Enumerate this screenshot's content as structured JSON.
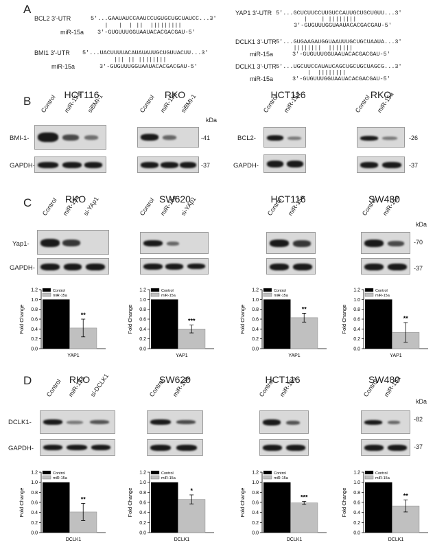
{
  "panel_A": {
    "letter": "A",
    "alignments": [
      {
        "utr_label": "BCL2 3'-UTR",
        "utr_seq": "5'...GAAUAUCCAAUCCUGUGCUGCUAUCC...3'",
        "pair_marks": "    |   |  | ||  |||||||||",
        "mir_label": "miR-15a",
        "mir_seq": "3'-GUGUUUGGUAAUACACGACGAU-5'"
      },
      {
        "utr_label": "BMI1 3'-UTR",
        "utr_seq": "5'...UACUUUUACAUAUAUUGCUGUUACUU...3'",
        "pair_marks": "         ||| || ||||||||",
        "mir_label": "miR-15a",
        "mir_seq": "3'-GUGUUUGGUAAUACACGACGAU-5'"
      },
      {
        "utr_label": "YAP1 3'-UTR",
        "utr_seq": "5'...GCUCUUCCUUGUCCAUUGCUGCUGUU...3'",
        "pair_marks": "        |    | ||||||||",
        "mir_label": "miR-15a",
        "mir_seq": "3'-GUGUUUGGUAAUACACGACGAU-5'"
      },
      {
        "utr_label": "DCLK1 3'-UTR",
        "utr_seq": "5'...GUGAAGAUGGUAAUUUGCUGCUAAUA...3'",
        "pair_marks": "     ||||||||  |||||||",
        "mir_label": "miR-15a",
        "mir_seq": "3'-GUGUUUGGUAAUACACGACGAU-5'"
      },
      {
        "utr_label": "DCLK1 3'-UTR",
        "utr_seq": "5'...UGCUUCCAUAUCAGCUGCUGCUAGCG...3'",
        "pair_marks": "         |  ||||||||",
        "mir_label": "miR-15a",
        "mir_seq": "3'-GUGUUUGGUAAUACACGACGAU-5'"
      }
    ]
  },
  "panel_B": {
    "letter": "B",
    "blots": [
      {
        "cell": "HCT116",
        "lanes": [
          "Control",
          "miR-15a",
          "siBMI-1"
        ],
        "row1": "BMI-1-",
        "row2": "GAPDH-"
      },
      {
        "cell": "RKO",
        "lanes": [
          "Control",
          "miR-15a",
          "siBMI-1"
        ],
        "mw1": "-41",
        "mw2": "-37",
        "kda": "kDa"
      },
      {
        "cell": "HCT116",
        "lanes": [
          "Control",
          "miR-15a"
        ],
        "row1": "BCL2-",
        "row2": "GAPDH-"
      },
      {
        "cell": "RKO",
        "lanes": [
          "Control",
          "miR-15a"
        ],
        "mw1": "-26",
        "mw2": "-37"
      }
    ]
  },
  "panel_C": {
    "letter": "C",
    "blots": [
      {
        "cell": "RKO",
        "lanes": [
          "Control",
          "miR-15a",
          "si-YAp1"
        ],
        "row1": "Yap1-",
        "row2": "GAPDH-"
      },
      {
        "cell": "SW620",
        "lanes": [
          "Control",
          "miR-15a",
          "si-YAp1"
        ]
      },
      {
        "cell": "HCT116",
        "lanes": [
          "Control",
          "miR-15a"
        ]
      },
      {
        "cell": "SW480",
        "lanes": [
          "Control",
          "miR-15a"
        ],
        "mw1": "-70",
        "mw2": "-37",
        "kda": "kDa"
      }
    ]
  },
  "panel_D": {
    "letter": "D",
    "blots": [
      {
        "cell": "RKO",
        "lanes": [
          "Control",
          "miR-15a",
          "si-DCLK1"
        ],
        "row1": "DCLK1-",
        "row2": "GAPDH-"
      },
      {
        "cell": "SW620",
        "lanes": [
          "Control",
          "miR-15a"
        ]
      },
      {
        "cell": "HCT116",
        "lanes": [
          "Control",
          "miR-15a"
        ]
      },
      {
        "cell": "SW480",
        "lanes": [
          "Control",
          "miR-15a"
        ],
        "mw1": "-82",
        "mw2": "-37",
        "kda": "kDa"
      }
    ]
  },
  "chart_data": [
    {
      "type": "bar",
      "panel": "C",
      "cell": "RKO",
      "categories": [
        "YAP1"
      ],
      "xlabel": "YAP1",
      "ylabel": "Fold Change",
      "ylim": [
        0,
        1.2
      ],
      "yticks": [
        "0.0",
        "0.2",
        "0.4",
        "0.6",
        "0.8",
        "1.0",
        "1.2"
      ],
      "legend_placement": "top-left",
      "series": [
        {
          "name": "Control",
          "values": [
            1.0
          ],
          "color": "#000000"
        },
        {
          "name": "miR-15a",
          "values": [
            0.42
          ],
          "error": [
            0.18
          ],
          "color": "#c0c0c0"
        }
      ],
      "annotation": "**"
    },
    {
      "type": "bar",
      "panel": "C",
      "cell": "SW620",
      "categories": [
        "YAP1"
      ],
      "xlabel": "YAP1",
      "ylabel": "Fold Change",
      "ylim": [
        0,
        1.2
      ],
      "yticks": [
        "0.0",
        "0.2",
        "0.4",
        "0.6",
        "0.8",
        "1.0",
        "1.2"
      ],
      "legend_placement": "top-left",
      "series": [
        {
          "name": "Control",
          "values": [
            1.0
          ],
          "color": "#000000"
        },
        {
          "name": "miR-15a",
          "values": [
            0.4
          ],
          "error": [
            0.08
          ],
          "color": "#c0c0c0"
        }
      ],
      "annotation": "***"
    },
    {
      "type": "bar",
      "panel": "C",
      "cell": "HCT116",
      "categories": [
        "YAP1"
      ],
      "xlabel": "YAP1",
      "ylabel": "Fold Change",
      "ylim": [
        0,
        1.2
      ],
      "yticks": [
        "0.0",
        "0.2",
        "0.4",
        "0.6",
        "0.8",
        "1.0",
        "1.2"
      ],
      "legend_placement": "top-left",
      "series": [
        {
          "name": "Control",
          "values": [
            1.0
          ],
          "color": "#000000"
        },
        {
          "name": "miR-15a",
          "values": [
            0.63
          ],
          "error": [
            0.09
          ],
          "color": "#c0c0c0"
        }
      ],
      "annotation": "**"
    },
    {
      "type": "bar",
      "panel": "C",
      "cell": "SW480",
      "categories": [
        "YAP1"
      ],
      "xlabel": "YAP1",
      "ylabel": "Fold Change",
      "ylim": [
        0,
        1.2
      ],
      "yticks": [
        "0.0",
        "0.2",
        "0.4",
        "0.6",
        "0.8",
        "1.0",
        "1.2"
      ],
      "legend_placement": "top-left",
      "series": [
        {
          "name": "Control",
          "values": [
            1.0
          ],
          "color": "#000000"
        },
        {
          "name": "miR-15a",
          "values": [
            0.33
          ],
          "error": [
            0.2
          ],
          "color": "#c0c0c0"
        }
      ],
      "annotation": "**"
    },
    {
      "type": "bar",
      "panel": "D",
      "cell": "RKO",
      "categories": [
        "DCLK1"
      ],
      "xlabel": "DCLK1",
      "ylabel": "Fold Change",
      "ylim": [
        0,
        1.2
      ],
      "yticks": [
        "0.0",
        "0.2",
        "0.4",
        "0.6",
        "0.8",
        "1.0",
        "1.2"
      ],
      "legend_placement": "top-left",
      "series": [
        {
          "name": "Control",
          "values": [
            1.0
          ],
          "color": "#000000"
        },
        {
          "name": "miR-15a",
          "values": [
            0.41
          ],
          "error": [
            0.17
          ],
          "color": "#c0c0c0"
        }
      ],
      "annotation": "**"
    },
    {
      "type": "bar",
      "panel": "D",
      "cell": "SW620",
      "categories": [
        "DCLK1"
      ],
      "xlabel": "DCLK1",
      "ylabel": "Fold Change",
      "ylim": [
        0,
        1.2
      ],
      "yticks": [
        "0.0",
        "0.2",
        "0.4",
        "0.6",
        "0.8",
        "1.0",
        "1.2"
      ],
      "legend_placement": "top-left",
      "series": [
        {
          "name": "Control",
          "values": [
            1.0
          ],
          "color": "#000000"
        },
        {
          "name": "miR-15a",
          "values": [
            0.66
          ],
          "error": [
            0.09
          ],
          "color": "#c0c0c0"
        }
      ],
      "annotation": "*"
    },
    {
      "type": "bar",
      "panel": "D",
      "cell": "HCT116",
      "categories": [
        "DCLK1"
      ],
      "xlabel": "DCLK1",
      "ylabel": "Fold Change",
      "ylim": [
        0,
        1.2
      ],
      "yticks": [
        "0.0",
        "0.2",
        "0.4",
        "0.6",
        "0.8",
        "1.0",
        "1.2"
      ],
      "legend_placement": "top-left",
      "series": [
        {
          "name": "Control",
          "values": [
            1.0
          ],
          "color": "#000000"
        },
        {
          "name": "miR-15a",
          "values": [
            0.59
          ],
          "error": [
            0.03
          ],
          "color": "#c0c0c0"
        }
      ],
      "annotation": "***"
    },
    {
      "type": "bar",
      "panel": "D",
      "cell": "SW480",
      "categories": [
        "DCLK1"
      ],
      "xlabel": "DCLK1",
      "ylabel": "Fold Change",
      "ylim": [
        0,
        1.2
      ],
      "yticks": [
        "0.0",
        "0.2",
        "0.4",
        "0.6",
        "0.8",
        "1.0",
        "1.2"
      ],
      "legend_placement": "top-left",
      "series": [
        {
          "name": "Control",
          "values": [
            1.0
          ],
          "color": "#000000"
        },
        {
          "name": "miR-15a",
          "values": [
            0.53
          ],
          "error": [
            0.12
          ],
          "color": "#c0c0c0"
        }
      ],
      "annotation": "**"
    }
  ]
}
